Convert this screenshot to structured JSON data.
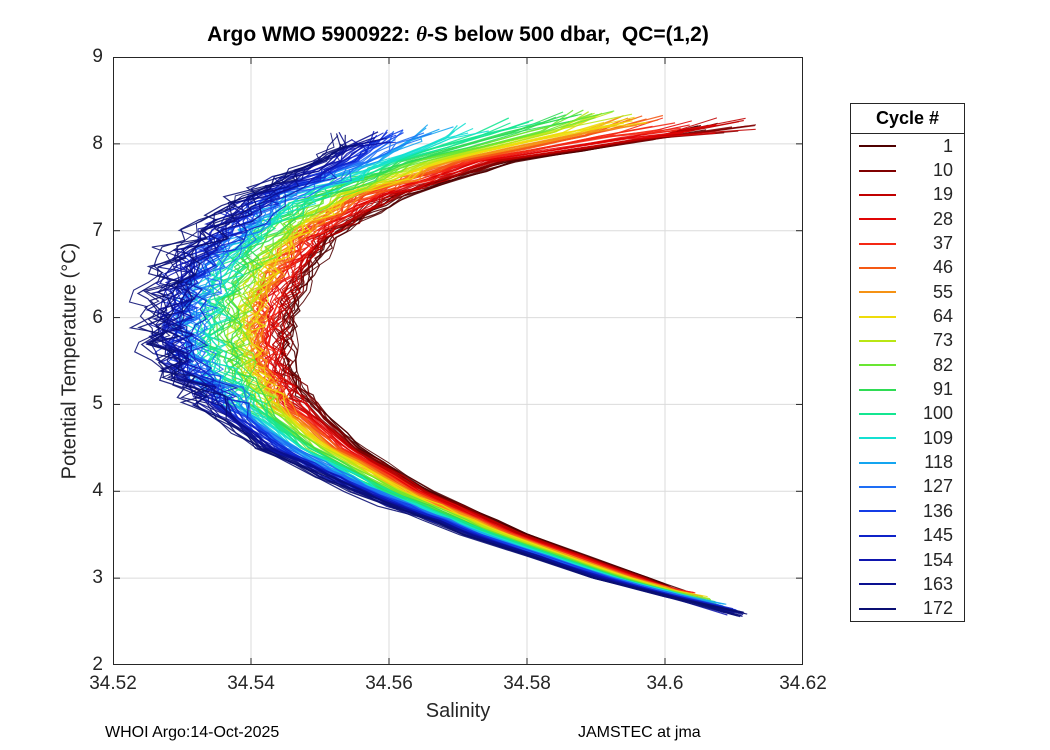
{
  "figure": {
    "title_prefix": "Argo WMO 5900922: ",
    "title_theta": "θ",
    "title_suffix": "-S below 500 dbar,  QC=(1,2)",
    "footer_left": "WHOI Argo:14-Oct-2025",
    "footer_right": "JAMSTEC at jma"
  },
  "style": {
    "axis_color": "#262626",
    "grid_color": "#DBDBDB",
    "text_color": "#262626",
    "background": "#FFFFFF"
  },
  "chart_data": {
    "type": "line",
    "title": "Argo WMO 5900922: θ-S below 500 dbar,  QC=(1,2)",
    "xlabel": "Salinity",
    "ylabel": "Potential Temperature (°C)",
    "xlim": [
      34.52,
      34.62
    ],
    "ylim": [
      2,
      9
    ],
    "grid": true,
    "x_ticks": {
      "values": [
        34.52,
        34.54,
        34.56,
        34.58,
        34.6,
        34.62
      ],
      "labels": [
        "34.52",
        "34.54",
        "34.56",
        "34.58",
        "34.6",
        "34.62"
      ]
    },
    "y_ticks": {
      "values": [
        2,
        3,
        4,
        5,
        6,
        7,
        8,
        9
      ],
      "labels": [
        "2",
        "3",
        "4",
        "5",
        "6",
        "7",
        "8",
        "9"
      ]
    },
    "legend": {
      "title": "Cycle #",
      "position": "outside-right"
    },
    "theta_grid": [
      7.8,
      7.4,
      7.0,
      6.6,
      6.2,
      5.8,
      5.4,
      5.0,
      4.5,
      4.0,
      3.5,
      3.0
    ],
    "series": [
      {
        "name": "1",
        "color": "#4F0000",
        "top": [
          34.608,
          8.18
        ],
        "s": [
          34.578,
          34.562,
          34.553,
          34.549,
          34.5465,
          34.5455,
          34.546,
          34.549,
          34.556,
          34.566,
          34.58,
          34.5975
        ],
        "bottom": [
          34.602,
          2.86
        ]
      },
      {
        "name": "10",
        "color": "#800000",
        "top": [
          34.611,
          8.2
        ],
        "s": [
          34.5765,
          34.5608,
          34.552,
          34.548,
          34.5455,
          34.5445,
          34.5451,
          34.5482,
          34.5552,
          34.5654,
          34.5795,
          34.5971
        ],
        "bottom": [
          34.6025,
          2.84
        ]
      },
      {
        "name": "19",
        "color": "#C00000",
        "top": [
          34.61,
          8.22
        ],
        "s": [
          34.575,
          34.5596,
          34.551,
          34.547,
          34.5446,
          34.5436,
          34.5443,
          34.5473,
          34.5545,
          34.5648,
          34.5791,
          34.5967
        ],
        "bottom": [
          34.6029,
          2.83
        ]
      },
      {
        "name": "28",
        "color": "#E00505",
        "top": [
          34.605,
          8.2
        ],
        "s": [
          34.5734,
          34.5584,
          34.5499,
          34.546,
          34.5436,
          34.5427,
          34.5434,
          34.5465,
          34.5537,
          34.5642,
          34.5786,
          34.5963
        ],
        "bottom": [
          34.6034,
          2.81
        ]
      },
      {
        "name": "37",
        "color": "#F42814",
        "top": [
          34.601,
          8.22
        ],
        "s": [
          34.5719,
          34.5571,
          34.5489,
          34.545,
          34.5426,
          34.5417,
          34.5425,
          34.5456,
          34.5529,
          34.5636,
          34.5781,
          34.5959
        ],
        "bottom": [
          34.6039,
          2.8
        ]
      },
      {
        "name": "46",
        "color": "#F55914",
        "top": [
          34.598,
          8.25
        ],
        "s": [
          34.5704,
          34.556,
          34.5479,
          34.544,
          34.5416,
          34.5408,
          34.5417,
          34.5448,
          34.5522,
          34.563,
          34.5776,
          34.5955
        ],
        "bottom": [
          34.6044,
          2.78
        ]
      },
      {
        "name": "55",
        "color": "#F59214",
        "top": [
          34.596,
          8.26
        ],
        "s": [
          34.5688,
          34.5547,
          34.5468,
          34.543,
          34.5407,
          34.5398,
          34.5408,
          34.5439,
          34.5514,
          34.5624,
          34.5772,
          34.5951
        ],
        "bottom": [
          34.6048,
          2.77
        ]
      },
      {
        "name": "64",
        "color": "#EEDC0A",
        "top": [
          34.594,
          8.28
        ],
        "s": [
          34.5673,
          34.5535,
          34.5458,
          34.542,
          34.5397,
          34.5389,
          34.5399,
          34.5431,
          34.5507,
          34.5618,
          34.5767,
          34.5947
        ],
        "bottom": [
          34.6053,
          2.75
        ]
      },
      {
        "name": "73",
        "color": "#B9E614",
        "top": [
          34.592,
          8.3
        ],
        "s": [
          34.5658,
          34.5523,
          34.5448,
          34.541,
          34.5387,
          34.5379,
          34.5391,
          34.5423,
          34.5499,
          34.5612,
          34.5762,
          34.5943
        ],
        "bottom": [
          34.6058,
          2.74
        ]
      },
      {
        "name": "82",
        "color": "#69E632",
        "top": [
          34.59,
          8.31
        ],
        "s": [
          34.5643,
          34.5511,
          34.5438,
          34.54,
          34.5377,
          34.537,
          34.5382,
          34.5414,
          34.5491,
          34.5605,
          34.5757,
          34.5939
        ],
        "bottom": [
          34.6063,
          2.72
        ]
      },
      {
        "name": "91",
        "color": "#2FDC55",
        "top": [
          34.586,
          8.3
        ],
        "s": [
          34.5627,
          34.5499,
          34.5427,
          34.539,
          34.5368,
          34.536,
          34.5373,
          34.5406,
          34.5484,
          34.56,
          34.5753,
          34.5936
        ],
        "bottom": [
          34.6067,
          2.71
        ]
      },
      {
        "name": "100",
        "color": "#14E691",
        "top": [
          34.58,
          8.26
        ],
        "s": [
          34.5612,
          34.5487,
          34.5417,
          34.538,
          34.5358,
          34.5351,
          34.5364,
          34.5397,
          34.5476,
          34.5593,
          34.5748,
          34.5932
        ],
        "bottom": [
          34.6072,
          2.69
        ]
      },
      {
        "name": "109",
        "color": "#14E0D2",
        "top": [
          34.573,
          8.2
        ],
        "s": [
          34.5597,
          34.5475,
          34.5407,
          34.537,
          34.5348,
          34.5341,
          34.5356,
          34.5389,
          34.5468,
          34.5587,
          34.5743,
          34.5928
        ],
        "bottom": [
          34.6077,
          2.68
        ]
      },
      {
        "name": "118",
        "color": "#14A5F0",
        "top": [
          34.567,
          8.15
        ],
        "s": [
          34.5582,
          34.5463,
          34.5397,
          34.536,
          34.5338,
          34.5332,
          34.5347,
          34.5381,
          34.5461,
          34.5581,
          34.5738,
          34.5924
        ],
        "bottom": [
          34.6082,
          2.66
        ]
      },
      {
        "name": "127",
        "color": "#1E6EF5",
        "top": [
          34.563,
          8.12
        ],
        "s": [
          34.5566,
          34.545,
          34.5386,
          34.535,
          34.5329,
          34.5322,
          34.5338,
          34.5372,
          34.5453,
          34.5575,
          34.5734,
          34.592
        ],
        "bottom": [
          34.6086,
          2.65
        ]
      },
      {
        "name": "136",
        "color": "#143CE6",
        "top": [
          34.56,
          8.1
        ],
        "s": [
          34.5551,
          34.5439,
          34.5376,
          34.534,
          34.5319,
          34.5313,
          34.533,
          34.5364,
          34.5446,
          34.5569,
          34.5729,
          34.5916
        ],
        "bottom": [
          34.6091,
          2.63
        ]
      },
      {
        "name": "145",
        "color": "#0F23C8",
        "top": [
          34.558,
          8.08
        ],
        "s": [
          34.5536,
          34.5426,
          34.5366,
          34.533,
          34.5309,
          34.5303,
          34.5321,
          34.5355,
          34.5438,
          34.5563,
          34.5724,
          34.5912
        ],
        "bottom": [
          34.6096,
          2.62
        ]
      },
      {
        "name": "154",
        "color": "#0F16AE",
        "top": [
          34.557,
          8.07
        ],
        "s": [
          34.552,
          34.5414,
          34.5355,
          34.532,
          34.5299,
          34.5294,
          34.5312,
          34.5347,
          34.543,
          34.5557,
          34.5719,
          34.5908
        ],
        "bottom": [
          34.6101,
          2.6
        ]
      },
      {
        "name": "163",
        "color": "#0A1090",
        "top": [
          34.556,
          8.06
        ],
        "s": [
          34.5505,
          34.5402,
          34.5345,
          34.531,
          34.529,
          34.5285,
          34.5304,
          34.5338,
          34.5423,
          34.5551,
          34.5715,
          34.5904
        ],
        "bottom": [
          34.6105,
          2.59
        ]
      },
      {
        "name": "172",
        "color": "#0A0F73",
        "top": [
          34.555,
          8.05
        ],
        "s": [
          34.549,
          34.539,
          34.5335,
          34.53,
          34.528,
          34.5275,
          34.5295,
          34.533,
          34.5415,
          34.5545,
          34.571,
          34.59
        ],
        "bottom": [
          34.611,
          2.57
        ]
      }
    ]
  }
}
